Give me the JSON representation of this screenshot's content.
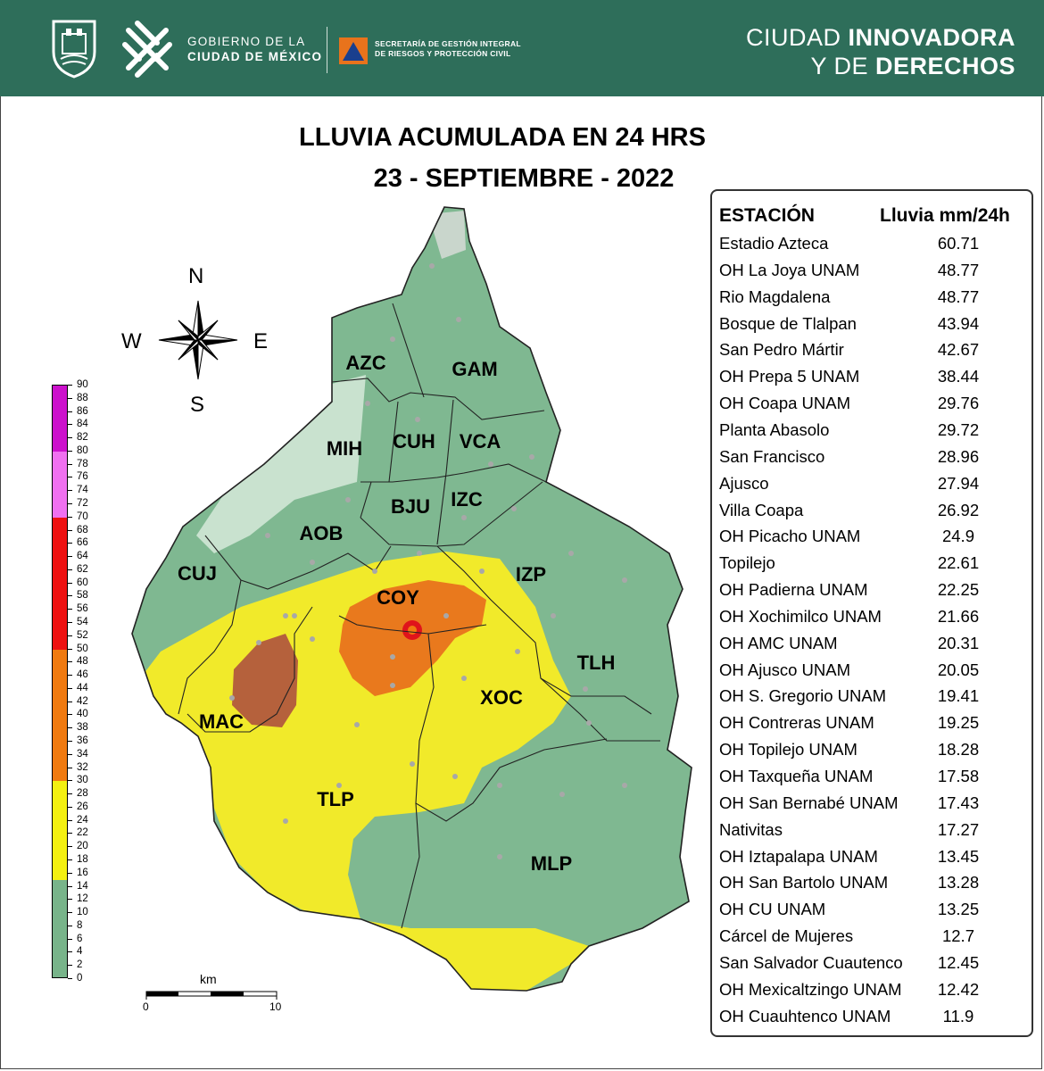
{
  "header": {
    "gov_line1": "GOBIERNO DE LA",
    "gov_line2": "CIUDAD DE MÉXICO",
    "sgirpc_line1": "SECRETARÍA DE GESTIÓN INTEGRAL",
    "sgirpc_line2": "DE RIESGOS Y PROTECCIÓN CIVIL",
    "slogan_line1_light": "CIUDAD ",
    "slogan_line1_bold": "INNOVADORA",
    "slogan_line2_light": "Y DE ",
    "slogan_line2_bold": "DERECHOS",
    "bar_color": "#2e6e5a"
  },
  "title": {
    "line1": "LLUVIA ACUMULADA EN 24 HRS",
    "line2": "23 - SEPTIEMBRE - 2022"
  },
  "compass": {
    "n": "N",
    "s": "S",
    "e": "E",
    "w": "W"
  },
  "colorbar": {
    "ticks": [
      "90",
      "88",
      "86",
      "84",
      "82",
      "80",
      "78",
      "76",
      "74",
      "72",
      "70",
      "68",
      "66",
      "64",
      "62",
      "60",
      "58",
      "56",
      "54",
      "52",
      "50",
      "48",
      "46",
      "44",
      "42",
      "40",
      "38",
      "36",
      "34",
      "32",
      "30",
      "28",
      "26",
      "24",
      "22",
      "20",
      "18",
      "16",
      "14",
      "12",
      "10",
      "8",
      "6",
      "4",
      "2",
      "0"
    ],
    "bands": [
      {
        "from": 80,
        "to": 90,
        "color": "#cc11cc"
      },
      {
        "from": 70,
        "to": 80,
        "color": "#f070f0"
      },
      {
        "from": 50,
        "to": 70,
        "color": "#ee1111"
      },
      {
        "from": 30,
        "to": 50,
        "color": "#f07a10"
      },
      {
        "from": 15,
        "to": 30,
        "color": "#f4f011"
      },
      {
        "from": 0,
        "to": 15,
        "color": "#78b48a"
      }
    ]
  },
  "scalebar": {
    "unit": "km",
    "min": "0",
    "max": "10"
  },
  "boroughs": [
    "AZC",
    "GAM",
    "MIH",
    "CUH",
    "VCA",
    "BJU",
    "IZC",
    "AOB",
    "CUJ",
    "COY",
    "IZP",
    "TLH",
    "XOC",
    "MAC",
    "TLP",
    "MLP"
  ],
  "table": {
    "col1": "ESTACIÓN",
    "col2": "Lluvia mm/24h",
    "rows": [
      {
        "station": "Estadio Azteca",
        "value": "60.71"
      },
      {
        "station": "OH La Joya UNAM",
        "value": "48.77"
      },
      {
        "station": "Rio Magdalena",
        "value": "48.77"
      },
      {
        "station": "Bosque de Tlalpan",
        "value": "43.94"
      },
      {
        "station": "San Pedro Mártir",
        "value": "42.67"
      },
      {
        "station": "OH Prepa 5 UNAM",
        "value": "38.44"
      },
      {
        "station": "OH Coapa UNAM",
        "value": "29.76"
      },
      {
        "station": "Planta Abasolo",
        "value": "29.72"
      },
      {
        "station": "San Francisco",
        "value": "28.96"
      },
      {
        "station": "Ajusco",
        "value": "27.94"
      },
      {
        "station": "Villa Coapa",
        "value": "26.92"
      },
      {
        "station": "OH Picacho UNAM",
        "value": "24.9"
      },
      {
        "station": "Topilejo",
        "value": "22.61"
      },
      {
        "station": "OH Padierna UNAM",
        "value": "22.25"
      },
      {
        "station": "OH Xochimilco UNAM",
        "value": "21.66"
      },
      {
        "station": "OH AMC UNAM",
        "value": "20.31"
      },
      {
        "station": "OH Ajusco UNAM",
        "value": "20.05"
      },
      {
        "station": "OH S. Gregorio UNAM",
        "value": "19.41"
      },
      {
        "station": "OH Contreras UNAM",
        "value": "19.25"
      },
      {
        "station": "OH Topilejo UNAM",
        "value": "18.28"
      },
      {
        "station": "OH Taxqueña UNAM",
        "value": "17.58"
      },
      {
        "station": "OH San Bernabé UNAM",
        "value": "17.43"
      },
      {
        "station": "Nativitas",
        "value": "17.27"
      },
      {
        "station": "OH Iztapalapa UNAM",
        "value": "13.45"
      },
      {
        "station": "OH San Bartolo UNAM",
        "value": "13.28"
      },
      {
        "station": "OH CU UNAM",
        "value": "13.25"
      },
      {
        "station": "Cárcel de Mujeres",
        "value": "12.7"
      },
      {
        "station": "San Salvador Cuautenco",
        "value": "12.45"
      },
      {
        "station": "OH Mexicaltzingo UNAM",
        "value": "12.42"
      },
      {
        "station": "OH Cuauhtenco UNAM",
        "value": "11.9"
      }
    ]
  }
}
